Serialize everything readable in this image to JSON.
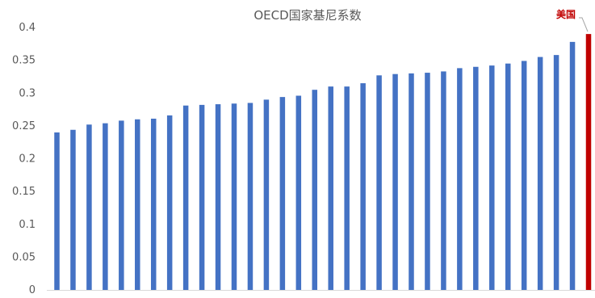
{
  "chart_data": {
    "type": "bar",
    "title": "OECD国家基尼系数",
    "xlabel": "",
    "ylabel": "",
    "ylim": [
      0,
      0.4
    ],
    "yticks": [
      0,
      0.05,
      0.1,
      0.15,
      0.2,
      0.25,
      0.3,
      0.35,
      0.4
    ],
    "ytick_labels": [
      "0",
      "0.05",
      "0.1",
      "0.15",
      "0.2",
      "0.25",
      "0.3",
      "0.35",
      "0.4"
    ],
    "grid": false,
    "bar_color": "#4472C4",
    "highlight_color": "#C00000",
    "values": [
      0.24,
      0.244,
      0.252,
      0.254,
      0.258,
      0.26,
      0.261,
      0.266,
      0.281,
      0.282,
      0.283,
      0.284,
      0.285,
      0.29,
      0.294,
      0.296,
      0.305,
      0.31,
      0.31,
      0.315,
      0.327,
      0.329,
      0.33,
      0.331,
      0.333,
      0.338,
      0.34,
      0.342,
      0.345,
      0.349,
      0.355,
      0.358,
      0.378,
      0.39
    ],
    "highlight": {
      "index": 33,
      "label": "美国"
    }
  }
}
